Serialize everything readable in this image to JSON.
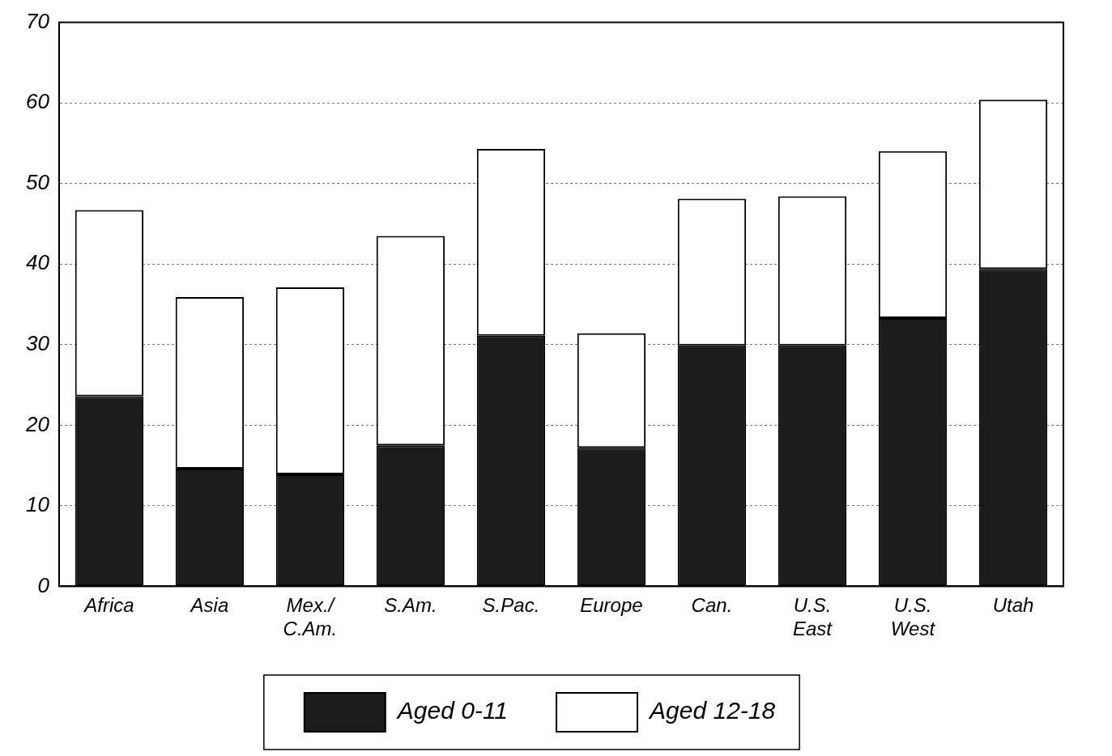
{
  "chart_data": {
    "type": "bar",
    "stacked": true,
    "categories": [
      "Africa",
      "Asia",
      "Mex./ C.Am.",
      "S.Am.",
      "S.Pac.",
      "Europe",
      "Can.",
      "U.S. East",
      "U.S. West",
      "Utah"
    ],
    "series": [
      {
        "name": "Aged 0-11",
        "color": "#1c1c1c",
        "values": [
          23.6,
          14.6,
          13.9,
          17.5,
          31.1,
          17.2,
          29.9,
          29.9,
          33.3,
          39.4
        ]
      },
      {
        "name": "Aged 12-18",
        "color": "#ffffff",
        "values": [
          23.1,
          21.3,
          23.2,
          26.0,
          23.2,
          14.2,
          18.2,
          18.5,
          20.7,
          21.0
        ]
      }
    ],
    "ylim": [
      0,
      70
    ],
    "yticks": [
      0,
      10,
      20,
      30,
      40,
      50,
      60,
      70
    ],
    "grid": true,
    "legend": "bottom"
  }
}
